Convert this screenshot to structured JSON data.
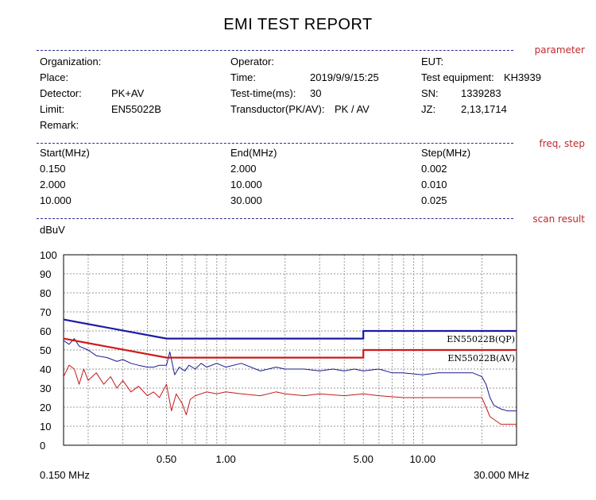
{
  "report": {
    "title": "EMI TEST REPORT",
    "sections": {
      "parameter": "parameter",
      "freq_step": "freq, step",
      "scan_result": "scan result"
    },
    "params": {
      "organization_label": "Organization:",
      "organization_value": "",
      "place_label": "Place:",
      "place_value": "",
      "detector_label": "Detector:",
      "detector_value": "PK+AV",
      "limit_label": "Limit:",
      "limit_value": "EN55022B",
      "remark_label": "Remark:",
      "remark_value": "",
      "operator_label": "Operator:",
      "operator_value": "",
      "time_label": "Time:",
      "time_value": "2019/9/9/15:25",
      "test_time_label": "Test-time(ms):",
      "test_time_value": "30",
      "transductor_label": "Transductor(PK/AV):",
      "transductor_value": "PK  /  AV",
      "eut_label": "EUT:",
      "eut_value": "",
      "test_equipment_label": "Test equipment:",
      "test_equipment_value": "KH3939",
      "sn_label": "SN:",
      "sn_value": "1339283",
      "jz_label": "JZ:",
      "jz_value": "2,13,1714"
    },
    "freq_table": {
      "headers": [
        "Start(MHz)",
        "End(MHz)",
        "Step(MHz)"
      ],
      "rows": [
        [
          "0.150",
          "2.000",
          "0.002"
        ],
        [
          "2.000",
          "10.000",
          "0.010"
        ],
        [
          "10.000",
          "30.000",
          "0.025"
        ]
      ]
    }
  },
  "chart_data": {
    "type": "line",
    "ylabel": "dBuV",
    "x_scale": "log",
    "xlim": [
      0.15,
      30
    ],
    "ylim": [
      0,
      100
    ],
    "y_ticks": [
      0,
      10,
      20,
      30,
      40,
      50,
      60,
      70,
      80,
      90,
      100
    ],
    "x_tick_labels": [
      {
        "x": 0.5,
        "label": "0.50"
      },
      {
        "x": 1,
        "label": "1.00"
      },
      {
        "x": 5,
        "label": "5.00"
      },
      {
        "x": 10,
        "label": "10.00"
      }
    ],
    "x_range_labels": {
      "start": "0.150 MHz",
      "end": "30.000 MHz"
    },
    "grid": true,
    "limits": [
      {
        "name": "EN55022B(QP)",
        "color": "#1a1aa6",
        "points": [
          [
            0.15,
            66
          ],
          [
            0.5,
            56
          ],
          [
            5,
            56
          ],
          [
            5,
            60
          ],
          [
            30,
            60
          ]
        ]
      },
      {
        "name": "EN55022B(AV)",
        "color": "#d01818",
        "points": [
          [
            0.15,
            56
          ],
          [
            0.5,
            46
          ],
          [
            5,
            46
          ],
          [
            5,
            50
          ],
          [
            30,
            50
          ]
        ]
      }
    ],
    "series": [
      {
        "color": "#1a1a8c",
        "points": [
          [
            0.15,
            55
          ],
          [
            0.16,
            53
          ],
          [
            0.17,
            56
          ],
          [
            0.18,
            52
          ],
          [
            0.2,
            50
          ],
          [
            0.22,
            47
          ],
          [
            0.25,
            46
          ],
          [
            0.28,
            44
          ],
          [
            0.3,
            45
          ],
          [
            0.33,
            43
          ],
          [
            0.36,
            42
          ],
          [
            0.4,
            41
          ],
          [
            0.43,
            41
          ],
          [
            0.46,
            42
          ],
          [
            0.5,
            42
          ],
          [
            0.52,
            49
          ],
          [
            0.55,
            37
          ],
          [
            0.58,
            41
          ],
          [
            0.62,
            39
          ],
          [
            0.65,
            42
          ],
          [
            0.7,
            40
          ],
          [
            0.75,
            43
          ],
          [
            0.8,
            41
          ],
          [
            0.9,
            43
          ],
          [
            1,
            41
          ],
          [
            1.2,
            43
          ],
          [
            1.5,
            39
          ],
          [
            1.8,
            41
          ],
          [
            2,
            40
          ],
          [
            2.5,
            40
          ],
          [
            3,
            39
          ],
          [
            3.5,
            40
          ],
          [
            4,
            39
          ],
          [
            4.5,
            40
          ],
          [
            5,
            39
          ],
          [
            6,
            40
          ],
          [
            7,
            38
          ],
          [
            8,
            38
          ],
          [
            10,
            37
          ],
          [
            12,
            38
          ],
          [
            15,
            38
          ],
          [
            18,
            38
          ],
          [
            20,
            36
          ],
          [
            21,
            32
          ],
          [
            22,
            25
          ],
          [
            23,
            21
          ],
          [
            25,
            19
          ],
          [
            27,
            18
          ],
          [
            30,
            18
          ]
        ]
      },
      {
        "color": "#c41a1a",
        "points": [
          [
            0.15,
            36
          ],
          [
            0.16,
            42
          ],
          [
            0.17,
            40
          ],
          [
            0.18,
            32
          ],
          [
            0.19,
            40
          ],
          [
            0.2,
            34
          ],
          [
            0.22,
            38
          ],
          [
            0.24,
            32
          ],
          [
            0.26,
            36
          ],
          [
            0.28,
            30
          ],
          [
            0.3,
            34
          ],
          [
            0.33,
            28
          ],
          [
            0.36,
            31
          ],
          [
            0.4,
            26
          ],
          [
            0.43,
            28
          ],
          [
            0.46,
            25
          ],
          [
            0.5,
            32
          ],
          [
            0.53,
            18
          ],
          [
            0.56,
            27
          ],
          [
            0.6,
            22
          ],
          [
            0.63,
            16
          ],
          [
            0.66,
            24
          ],
          [
            0.7,
            26
          ],
          [
            0.8,
            28
          ],
          [
            0.9,
            27
          ],
          [
            1,
            28
          ],
          [
            1.2,
            27
          ],
          [
            1.5,
            26
          ],
          [
            1.8,
            28
          ],
          [
            2,
            27
          ],
          [
            2.5,
            26
          ],
          [
            3,
            27
          ],
          [
            4,
            26
          ],
          [
            5,
            27
          ],
          [
            6,
            26
          ],
          [
            8,
            25
          ],
          [
            10,
            25
          ],
          [
            15,
            25
          ],
          [
            18,
            25
          ],
          [
            20,
            25
          ],
          [
            21,
            20
          ],
          [
            22,
            15
          ],
          [
            25,
            11
          ],
          [
            30,
            11
          ]
        ]
      }
    ]
  }
}
